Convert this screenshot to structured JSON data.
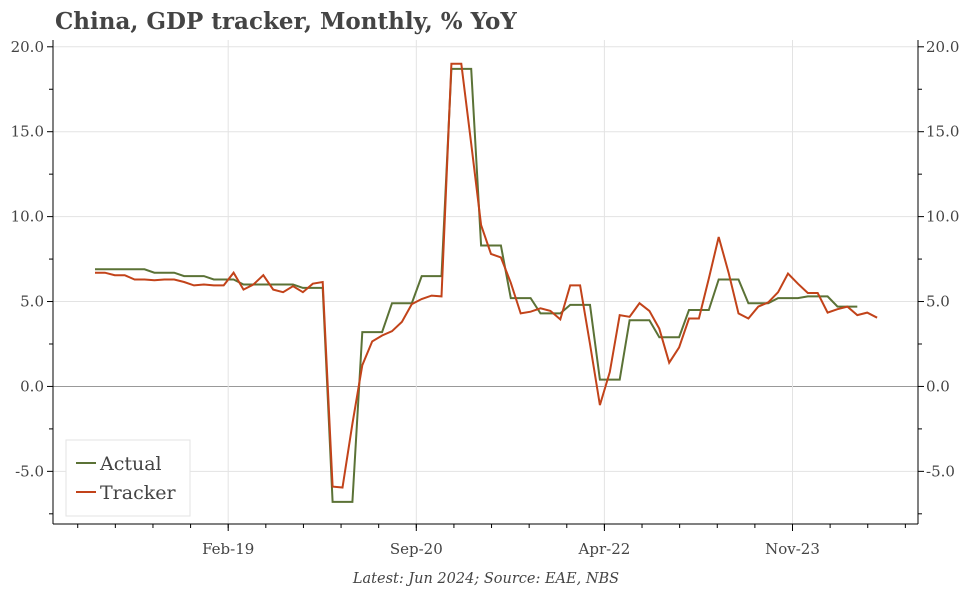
{
  "chart_data": {
    "type": "line",
    "title": "China, GDP tracker, Monthly, % YoY",
    "footer": "Latest: Jun 2024; Source: EAE, NBS",
    "x_start": "2018-01",
    "x_frequency": "monthly",
    "x_tick_labels": [
      {
        "label": "Feb-19",
        "month": "2019-02"
      },
      {
        "label": "Sep-20",
        "month": "2020-09"
      },
      {
        "label": "Apr-22",
        "month": "2022-04"
      },
      {
        "label": "Nov-23",
        "month": "2023-11"
      }
    ],
    "y_ticks": [
      "20.0",
      "15.0",
      "10.0",
      "5.0",
      "0.0",
      "-5.0"
    ],
    "ylim": [
      -8.1,
      20.4
    ],
    "grid": true,
    "legend_position": "bottom-left",
    "series": [
      {
        "name": "Actual",
        "color": "#5b7236",
        "values": [
          6.9,
          6.9,
          6.9,
          6.9,
          6.9,
          6.9,
          6.7,
          6.7,
          6.7,
          6.5,
          6.5,
          6.5,
          6.3,
          6.3,
          6.3,
          6.0,
          6.0,
          6.0,
          6.0,
          6.0,
          6.0,
          5.8,
          5.8,
          5.8,
          -6.8,
          -6.8,
          -6.8,
          3.2,
          3.2,
          3.2,
          4.9,
          4.9,
          4.9,
          6.5,
          6.5,
          6.5,
          18.7,
          18.7,
          18.7,
          8.3,
          8.3,
          8.3,
          5.2,
          5.2,
          5.2,
          4.3,
          4.3,
          4.3,
          4.8,
          4.8,
          4.8,
          0.4,
          0.4,
          0.4,
          3.9,
          3.9,
          3.9,
          2.9,
          2.9,
          2.9,
          4.5,
          4.5,
          4.5,
          6.3,
          6.3,
          6.3,
          4.9,
          4.9,
          4.9,
          5.2,
          5.2,
          5.2,
          5.3,
          5.3,
          5.3,
          4.7,
          4.7,
          4.7
        ]
      },
      {
        "name": "Tracker",
        "color": "#c2431a",
        "values": [
          6.7,
          6.7,
          6.55,
          6.55,
          6.3,
          6.3,
          6.25,
          6.3,
          6.3,
          6.15,
          5.95,
          6.0,
          5.95,
          5.95,
          6.7,
          5.7,
          6.0,
          6.55,
          5.7,
          5.55,
          5.9,
          5.55,
          6.05,
          6.15,
          -5.9,
          -5.95,
          -2.2,
          1.25,
          2.65,
          3.0,
          3.25,
          3.8,
          4.85,
          5.15,
          5.35,
          5.3,
          19.0,
          19.0,
          14.3,
          9.5,
          7.8,
          7.6,
          6.1,
          4.3,
          4.4,
          4.6,
          4.45,
          3.95,
          5.95,
          5.95,
          2.5,
          -1.1,
          0.85,
          4.2,
          4.1,
          4.9,
          4.45,
          3.4,
          1.4,
          2.3,
          4.0,
          4.0,
          6.35,
          8.8,
          6.7,
          4.3,
          4.0,
          4.7,
          4.95,
          5.55,
          6.65,
          6.05,
          5.5,
          5.5,
          4.35,
          4.55,
          4.7,
          4.2,
          4.35,
          4.05
        ]
      }
    ],
    "axis_color": "#000000",
    "grid_color": "#e3e3e3",
    "zero_line_color": "#999999"
  }
}
